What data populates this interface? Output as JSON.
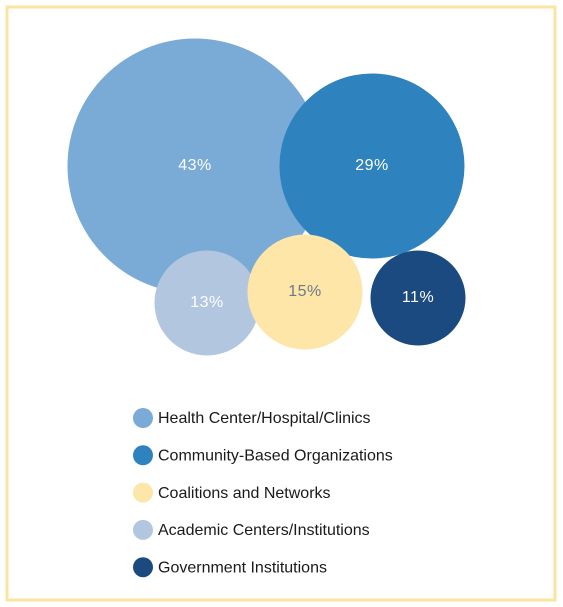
{
  "chart_data": {
    "type": "bubble",
    "categories": [
      "Health Center/Hospital/Clinics",
      "Community-Based Organizations",
      "Coalitions and Networks",
      "Academic Centers/Institutions",
      "Government Institutions"
    ],
    "values": [
      43,
      29,
      15,
      13,
      11
    ],
    "value_labels": [
      "43%",
      "29%",
      "15%",
      "13%",
      "11%"
    ],
    "colors": [
      "#7aaad6",
      "#2e82be",
      "#fde6a8",
      "#b3c6e0",
      "#1a4a80"
    ]
  }
}
